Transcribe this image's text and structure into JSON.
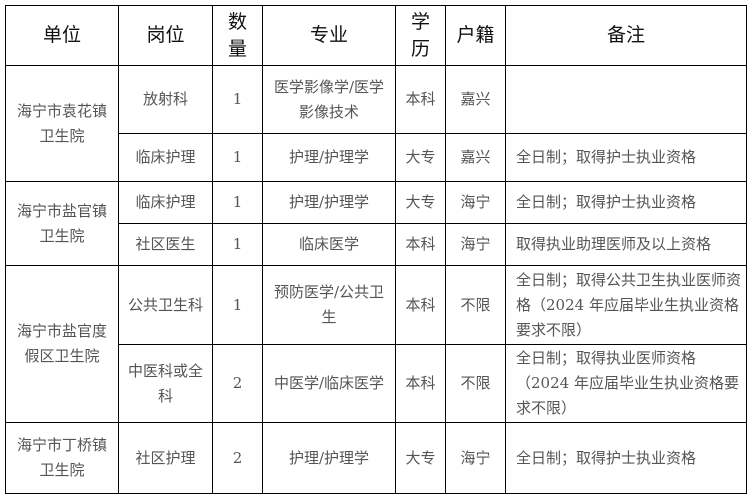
{
  "headers": {
    "unit": "单位",
    "post": "岗位",
    "count": "数量",
    "major": "专业",
    "education": "学历",
    "hukou": "户籍",
    "remarks": "备注"
  },
  "rows": [
    {
      "unit": "海宁市袁花镇卫生院",
      "post": "放射科",
      "count": "1",
      "major": "医学影像学/医学影像技术",
      "education": "本科",
      "hukou": "嘉兴",
      "remarks": ""
    },
    {
      "post": "临床护理",
      "count": "1",
      "major": "护理/护理学",
      "education": "大专",
      "hukou": "嘉兴",
      "remarks": "全日制；取得护士执业资格"
    },
    {
      "unit": "海宁市盐官镇卫生院",
      "post": "临床护理",
      "count": "1",
      "major": "护理/护理学",
      "education": "大专",
      "hukou": "海宁",
      "remarks": "全日制；取得护士执业资格"
    },
    {
      "post": "社区医生",
      "count": "1",
      "major": "临床医学",
      "education": "本科",
      "hukou": "海宁",
      "remarks": "取得执业助理医师及以上资格"
    },
    {
      "unit": "海宁市盐官度假区卫生院",
      "post": "公共卫生科",
      "count": "1",
      "major": "预防医学/公共卫生",
      "education": "本科",
      "hukou": "不限",
      "remarks": "全日制；取得公共卫生执业医师资格（2024 年应届毕业生执业资格要求不限）"
    },
    {
      "post": "中医科或全科",
      "count": "2",
      "major": "中医学/临床医学",
      "education": "本科",
      "hukou": "不限",
      "remarks": "全日制；取得执业医师资格（2024 年应届毕业生执业资格要求不限）"
    },
    {
      "unit": "海宁市丁桥镇卫生院",
      "post": "社区护理",
      "count": "2",
      "major": "护理/护理学",
      "education": "大专",
      "hukou": "海宁",
      "remarks": "全日制；取得护士执业资格"
    }
  ]
}
